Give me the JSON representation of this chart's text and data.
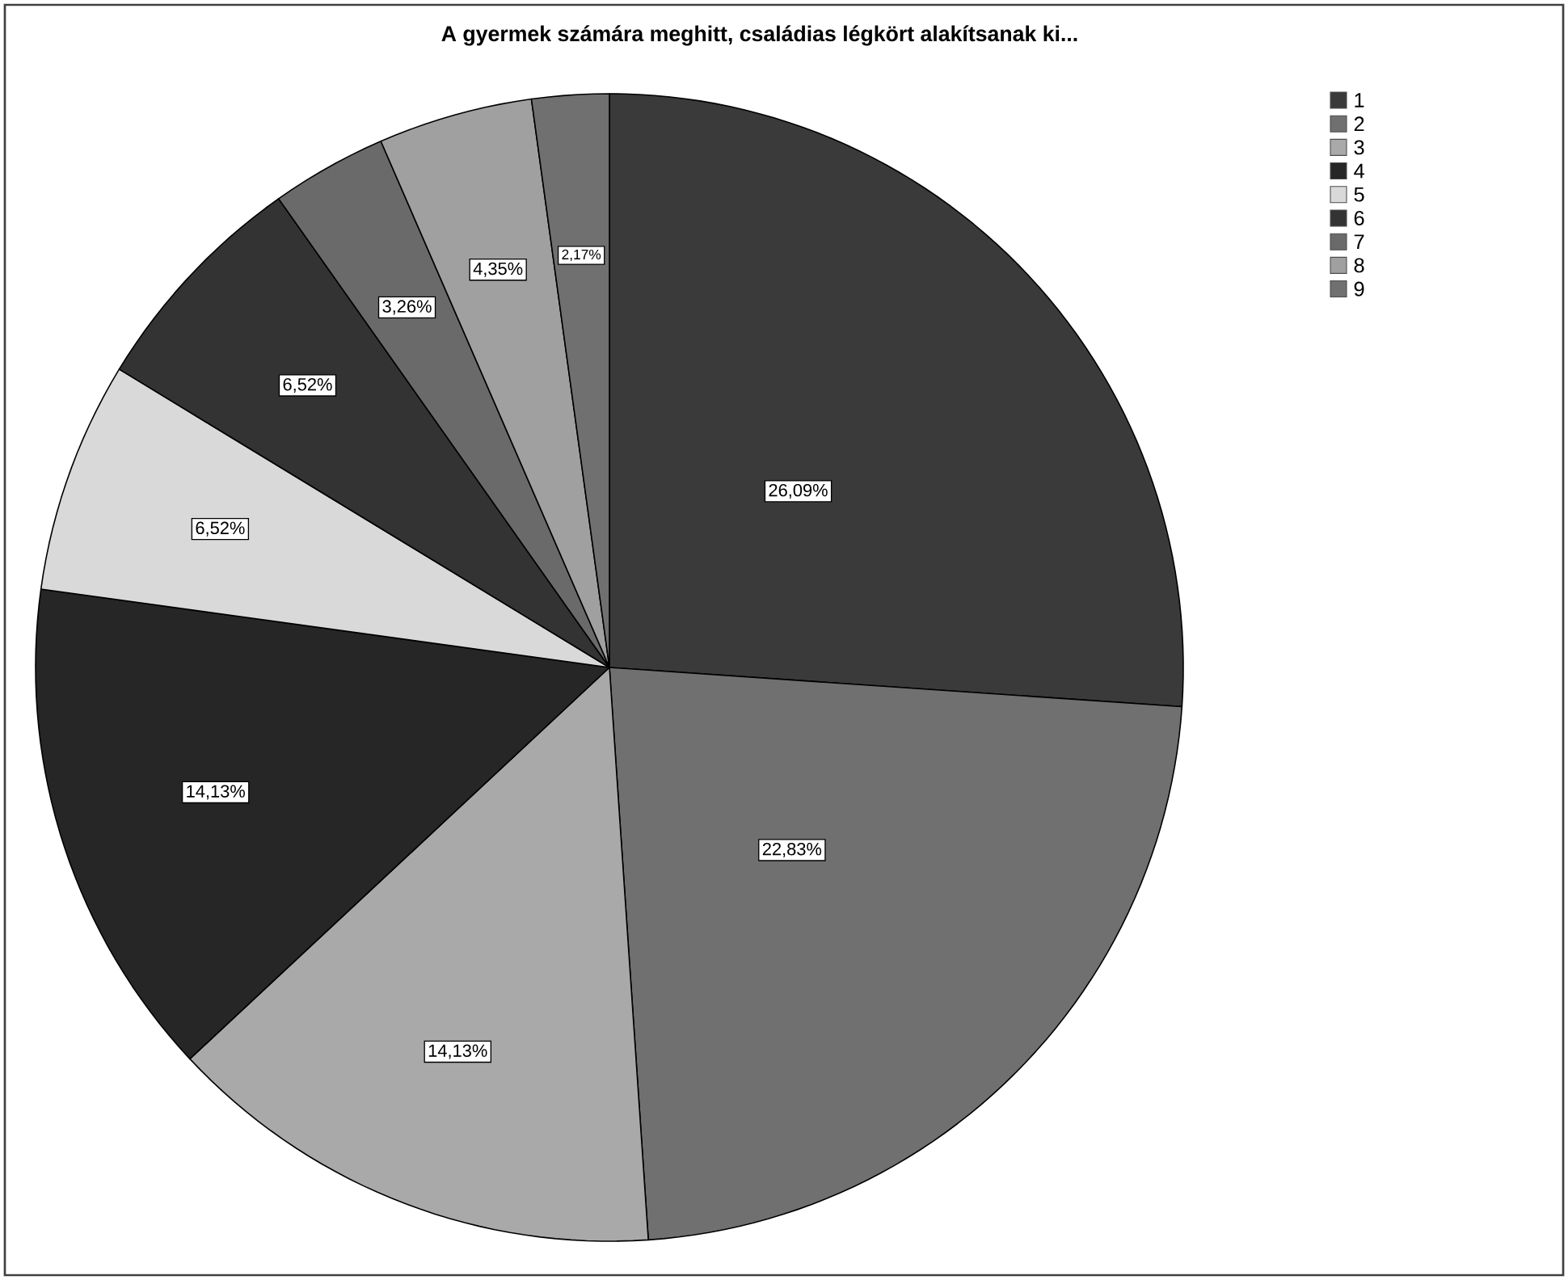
{
  "chart_data": {
    "type": "pie",
    "title": "A gyermek számára meghitt, családias légkört alakítsanak ki...",
    "categories": [
      "1",
      "2",
      "3",
      "4",
      "5",
      "6",
      "7",
      "8",
      "9"
    ],
    "values": [
      26.09,
      22.83,
      14.13,
      14.13,
      6.52,
      6.52,
      3.26,
      4.35,
      2.17
    ],
    "value_labels": [
      "26,09%",
      "22,83%",
      "14,13%",
      "14,13%",
      "6,52%",
      "6,52%",
      "3,26%",
      "4,35%",
      "2,17%"
    ],
    "colors": [
      "#3a3a3a",
      "#707070",
      "#a9a9a9",
      "#262626",
      "#d9d9d9",
      "#333333",
      "#6a6a6a",
      "#a0a0a0",
      "#707070"
    ],
    "legend": "top right"
  }
}
